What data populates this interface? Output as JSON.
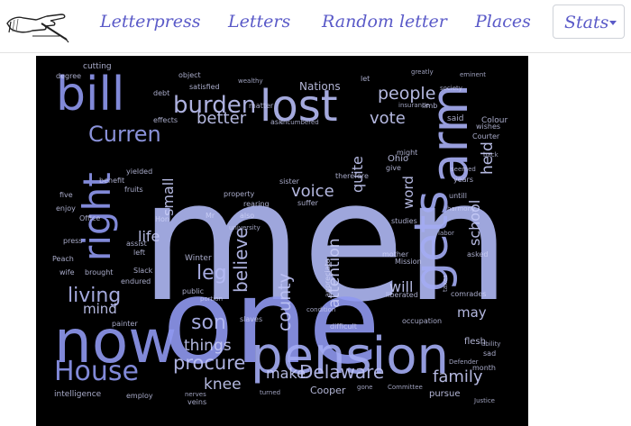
{
  "nav": {
    "links": [
      "Letterpress",
      "Letters",
      "Random letter",
      "Places"
    ],
    "stats_label": "Stats"
  },
  "colors": {
    "nav_text": "#5a5ac8",
    "cloud_bg": "#000000"
  },
  "icons": {
    "logo": "pointing-hand-pen-icon",
    "caret": "caret-down-icon"
  },
  "cloud_words": [
    "men",
    "one",
    "now",
    "pension",
    "lost",
    "bill",
    "arm",
    "gets",
    "right",
    "House",
    "burden",
    "Curren",
    "people",
    "vote",
    "held",
    "living",
    "leg",
    "believe",
    "things",
    "procure",
    "son",
    "knee",
    "make",
    "Delaware",
    "family",
    "county",
    "attention",
    "quite",
    "school",
    "word",
    "voice",
    "will",
    "may",
    "life",
    "mind",
    "small",
    "better",
    "Nations",
    "Cooper",
    "pursue",
    "Ohio",
    "Winter",
    "flesh",
    "Colour",
    "Courter",
    "cutting",
    "degree",
    "satisfied",
    "wealthy",
    "object",
    "eminent",
    "intelligence",
    "employ",
    "veins",
    "nerves",
    "turned",
    "gone",
    "Committee",
    "Justice",
    "Peach",
    "wife",
    "brought",
    "endured",
    "painter",
    "Slack",
    "press",
    "Office",
    "enjoy",
    "five",
    "benefit",
    "yielded",
    "fruits",
    "ask",
    "incumbered",
    "matter",
    "let",
    "greatly",
    "said",
    "insurance",
    "limb",
    "effects",
    "debt",
    "society",
    "sister",
    "might",
    "give",
    "therefore",
    "suffer",
    "Mr",
    "also",
    "property",
    "rearing",
    "Hon",
    "assist",
    "left",
    "public",
    "portion",
    "university",
    "slaves",
    "appreciate",
    "difficult",
    "condition",
    "liberated",
    "occupation",
    "comrades",
    "asked",
    "taxes",
    "Mission",
    "mother",
    "labor",
    "studies",
    "untill",
    "harmony",
    "years",
    "seemed",
    "back",
    "wishes",
    "sad",
    "month",
    "Defender",
    "ability"
  ]
}
